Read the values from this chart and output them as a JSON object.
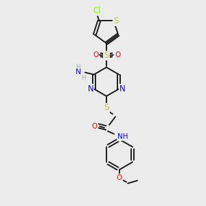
{
  "bg_color": "#ebebeb",
  "bond_color": "#1a1a1a",
  "colors": {
    "N": "#0000ff",
    "O": "#ff0000",
    "S": "#cccc00",
    "Cl": "#7fff00",
    "C": "#1a1a1a",
    "H": "#aaaaaa"
  },
  "font_size": 7.5
}
